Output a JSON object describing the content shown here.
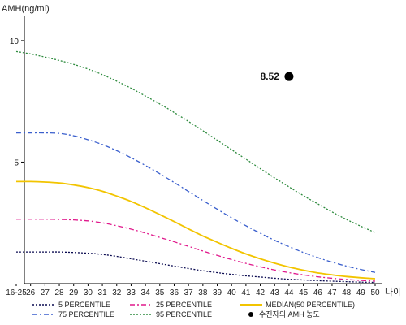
{
  "chart_data": {
    "type": "line",
    "ylabel": "AMH(ng/ml)",
    "xlabel": "나이",
    "ylim": [
      0,
      11
    ],
    "yticks": [
      5,
      10
    ],
    "categories": [
      "16-25",
      "26",
      "27",
      "28",
      "29",
      "30",
      "31",
      "32",
      "33",
      "34",
      "35",
      "36",
      "37",
      "38",
      "39",
      "40",
      "41",
      "42",
      "43",
      "44",
      "45",
      "46",
      "47",
      "48",
      "49",
      "50"
    ],
    "series": [
      {
        "name": "5 PERCENTILE",
        "color": "#0a0a50",
        "dash": "2,2",
        "values": [
          1.3,
          1.3,
          1.3,
          1.3,
          1.28,
          1.25,
          1.2,
          1.12,
          1.02,
          0.92,
          0.82,
          0.72,
          0.62,
          0.53,
          0.45,
          0.38,
          0.32,
          0.27,
          0.22,
          0.18,
          0.15,
          0.12,
          0.1,
          0.08,
          0.06,
          0.05
        ]
      },
      {
        "name": "25 PERCENTILE",
        "color": "#e0198c",
        "dash": "6,3,2,3",
        "values": [
          2.65,
          2.65,
          2.65,
          2.64,
          2.62,
          2.58,
          2.5,
          2.38,
          2.24,
          2.08,
          1.9,
          1.72,
          1.53,
          1.34,
          1.16,
          0.99,
          0.83,
          0.69,
          0.56,
          0.45,
          0.36,
          0.28,
          0.22,
          0.17,
          0.13,
          0.1
        ]
      },
      {
        "name": "MEDIAN(50 PERCENTILE)",
        "color": "#f2c400",
        "dash": "",
        "values": [
          4.2,
          4.2,
          4.18,
          4.14,
          4.06,
          3.95,
          3.8,
          3.6,
          3.38,
          3.12,
          2.84,
          2.55,
          2.25,
          1.96,
          1.7,
          1.45,
          1.22,
          1.02,
          0.84,
          0.68,
          0.55,
          0.44,
          0.36,
          0.29,
          0.24,
          0.2
        ]
      },
      {
        "name": "75 PERCENTILE",
        "color": "#3a5fcd",
        "dash": "6,3,2,3",
        "values": [
          6.2,
          6.2,
          6.2,
          6.18,
          6.08,
          5.92,
          5.72,
          5.47,
          5.18,
          4.86,
          4.52,
          4.16,
          3.79,
          3.42,
          3.06,
          2.71,
          2.38,
          2.07,
          1.78,
          1.52,
          1.28,
          1.07,
          0.88,
          0.72,
          0.58,
          0.46
        ]
      },
      {
        "name": "95 PERCENTILE",
        "color": "#2e8b3e",
        "dash": "2,2",
        "values": [
          9.55,
          9.45,
          9.32,
          9.18,
          9.02,
          8.83,
          8.6,
          8.33,
          8.04,
          7.72,
          7.39,
          7.04,
          6.67,
          6.29,
          5.9,
          5.51,
          5.12,
          4.73,
          4.35,
          3.98,
          3.62,
          3.28,
          2.95,
          2.64,
          2.36,
          2.1
        ]
      }
    ],
    "points": [
      {
        "name": "수진자의 AMH 농도",
        "x": "44",
        "y": 8.52,
        "label": "8.52",
        "color": "#000000"
      }
    ],
    "legend": {
      "position": "bottom",
      "items": [
        {
          "label": "5 PERCENTILE",
          "series": 0
        },
        {
          "label": "25 PERCENTILE",
          "series": 1
        },
        {
          "label": "MEDIAN(50 PERCENTILE)",
          "series": 2
        },
        {
          "label": "75 PERCENTILE",
          "series": 3
        },
        {
          "label": "95 PERCENTILE",
          "series": 4
        },
        {
          "label": "수진자의 AMH 농도",
          "marker": "dot"
        }
      ]
    },
    "grid": false
  }
}
